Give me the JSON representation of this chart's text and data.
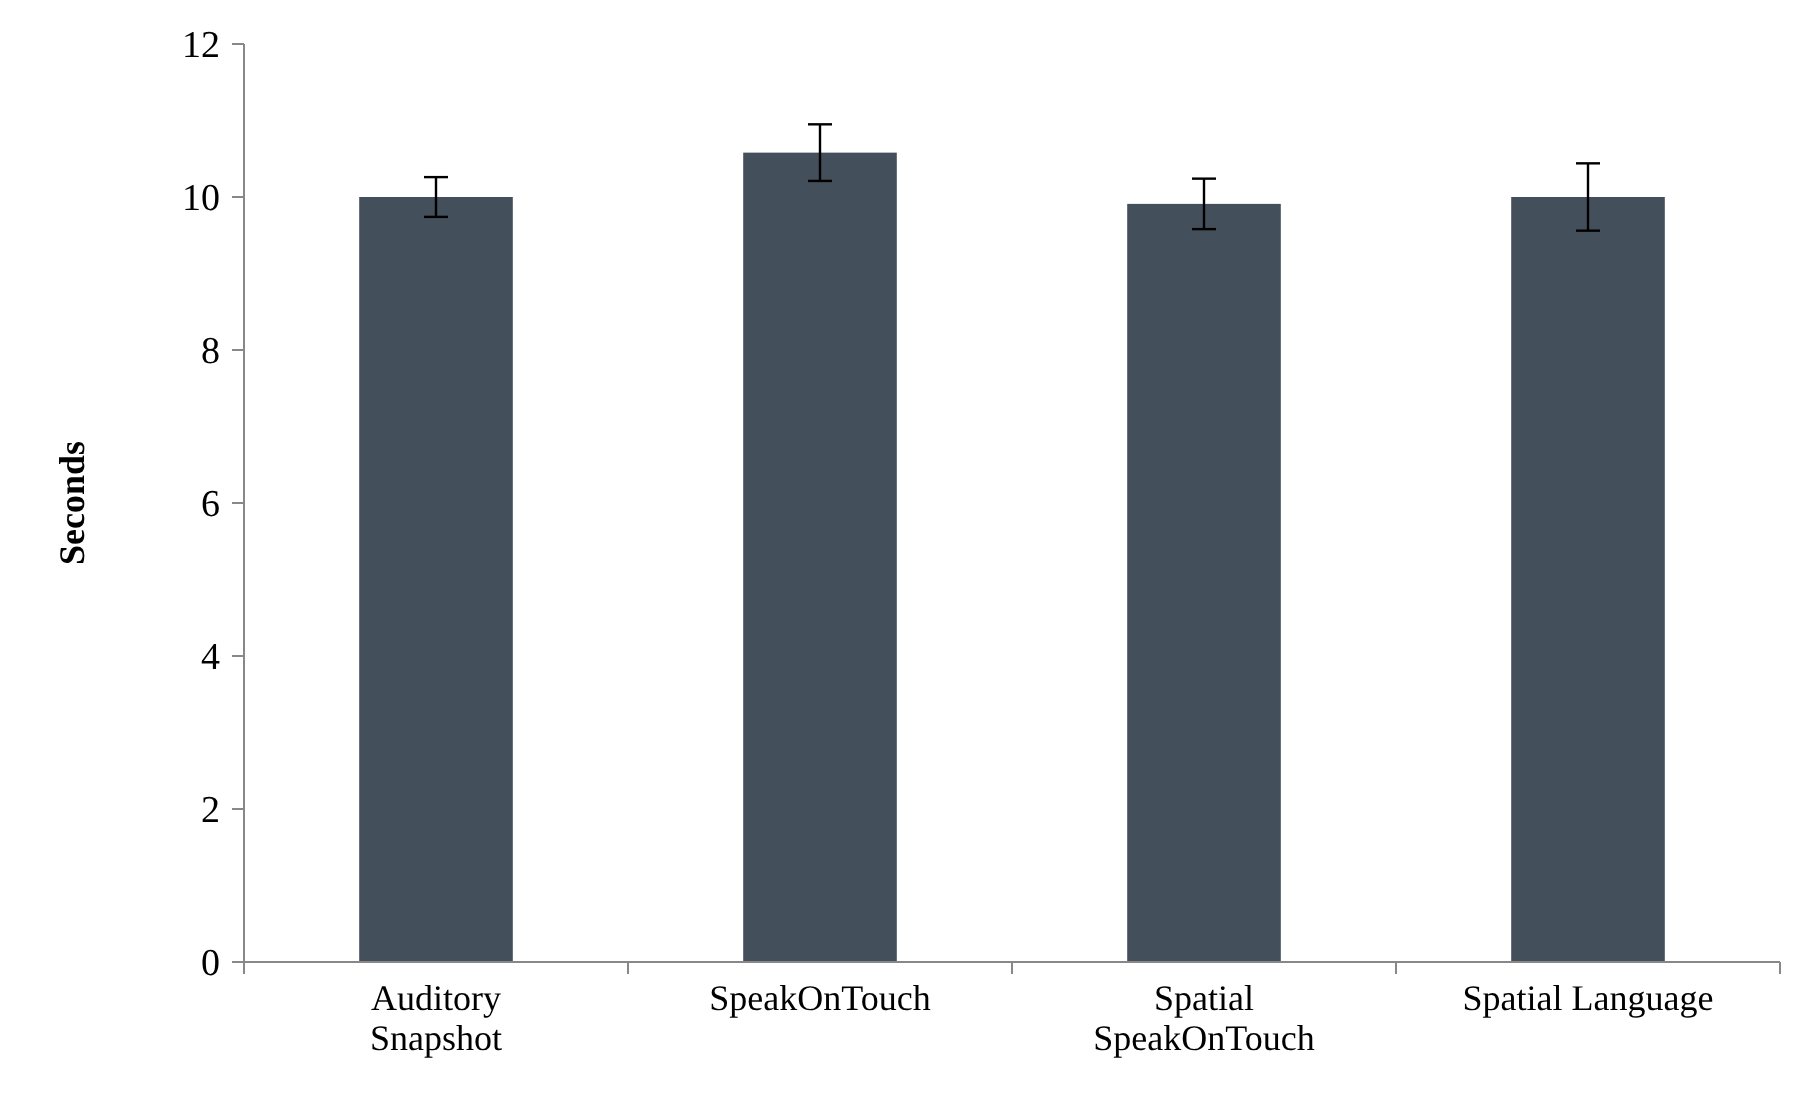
{
  "chart_data": {
    "type": "bar",
    "ylabel": "Seconds",
    "categories": [
      "Auditory\nSnapshot",
      "SpeakOnTouch",
      "Spatial\nSpeakOnTouch",
      "Spatial Language"
    ],
    "values": [
      10.0,
      10.58,
      9.91,
      10.0
    ],
    "errors": [
      0.26,
      0.37,
      0.33,
      0.44
    ],
    "color": "#444f5c",
    "ylim": [
      0,
      12
    ],
    "yticks": [
      0,
      2,
      4,
      6,
      8,
      10,
      12
    ],
    "grid": false
  }
}
